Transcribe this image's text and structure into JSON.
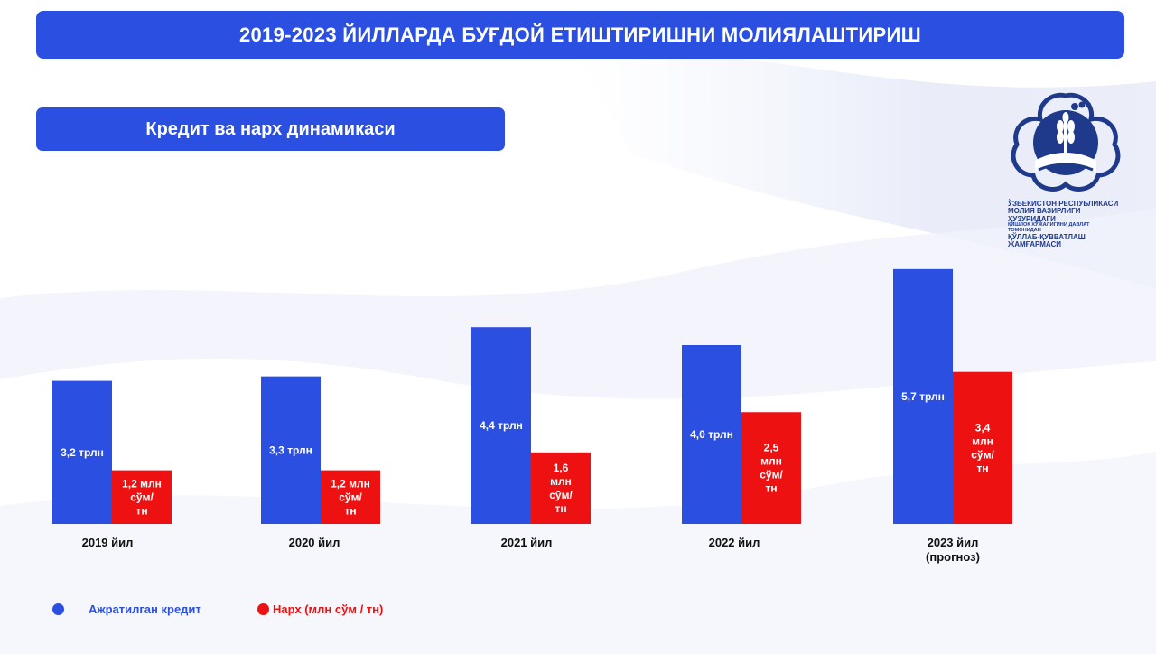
{
  "header": {
    "title": "2019-2023 ЙИЛЛАРДА БУҒДОЙ ЕТИШТИРИШНИ МОЛИЯЛАШТИРИШ",
    "subtitle": "Кредит ва нарх динамикаси"
  },
  "logo": {
    "line1": "ЎЗБЕКИСТОН РЕСПУБЛИКАСИ",
    "line2": "МОЛИЯ ВАЗИРЛИГИ ҲУЗУРИДАГИ",
    "line3": "ҚИШЛОҚ ХЎЖАЛИГИНИ ДАВЛАТ ТОМОНИДАН",
    "line4": "ҚЎЛЛАБ-ҚУВВАТЛАШ ЖАМҒАРМАСИ"
  },
  "colors": {
    "blue": "#2b4fe0",
    "red": "#ee1111"
  },
  "legend": {
    "credit_label": "Ажратилган кредит",
    "price_label": "Нарх (млн сўм / тн)"
  },
  "chart_data": {
    "type": "bar",
    "categories": [
      "2019 йил",
      "2020 йил",
      "2021 йил",
      "2022 йил",
      "2023 йил (прогноз)"
    ],
    "category_lines": [
      [
        "2019 йил"
      ],
      [
        "2020 йил"
      ],
      [
        "2021 йил"
      ],
      [
        "2022 йил"
      ],
      [
        "2023 йил",
        "(прогноз)"
      ]
    ],
    "series": [
      {
        "name": "Ажратилган кредит",
        "color": "#2b4fe0",
        "values": [
          3.2,
          3.3,
          4.4,
          4.0,
          5.7
        ],
        "labels": [
          [
            "3,2 трлн"
          ],
          [
            "3,3 трлн"
          ],
          [
            "4,4 трлн"
          ],
          [
            "4,0 трлн"
          ],
          [
            "5,7 трлн"
          ]
        ]
      },
      {
        "name": "Нарх (млн сўм / тн)",
        "color": "#ee1111",
        "values": [
          1.2,
          1.2,
          1.6,
          2.5,
          3.4
        ],
        "labels": [
          [
            "1,2 млн",
            "сўм/",
            "тн"
          ],
          [
            "1,2 млн",
            "сўм/",
            "тн"
          ],
          [
            "1,6",
            "млн",
            "сўм/",
            "тн"
          ],
          [
            "2,5",
            "млн",
            "сўм/",
            "тн"
          ],
          [
            "3,4",
            "млн",
            "сўм/",
            "тн"
          ]
        ]
      }
    ],
    "grid": false,
    "legend_position": "bottom-left"
  }
}
